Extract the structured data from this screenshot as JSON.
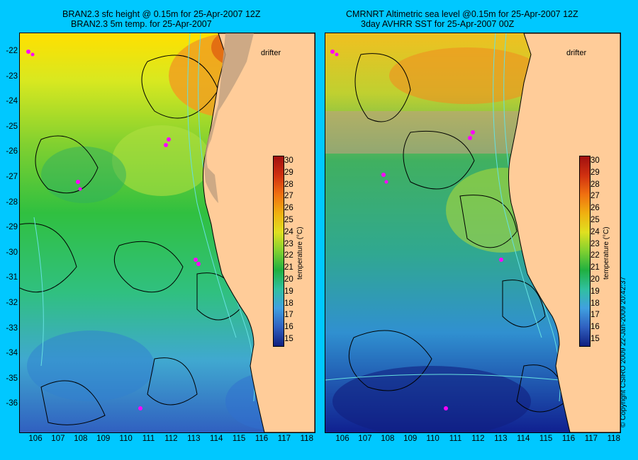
{
  "left": {
    "title_line1": "BRAN2.3 sfc height @ 0.15m for 25-Apr-2007 12Z",
    "title_line2": "BRAN2.3 5m temp. for 25-Apr-2007"
  },
  "right": {
    "title_line1": "CMRNRT Altimetric sea level  @0.15m  for 25-Apr-2007 12Z",
    "title_line2": "3day AVHRR SST for 25-Apr-2007 00Z"
  },
  "legend": {
    "drifter": "drifter",
    "cbar_title": "temperature (°C)"
  },
  "copyright": "© Copyright CSIRO 2009  22-Jan-2009 20:42:37",
  "lat_ticks": [
    "-22",
    "-23",
    "-24",
    "-25",
    "-26",
    "-27",
    "-28",
    "-29",
    "-30",
    "-31",
    "-32",
    "-33",
    "-34",
    "-35",
    "-36"
  ],
  "lon_ticks": [
    "106",
    "107",
    "108",
    "109",
    "110",
    "111",
    "112",
    "113",
    "114",
    "115",
    "116",
    "117",
    "118"
  ],
  "cbar_ticks": [
    "30",
    "29",
    "28",
    "27",
    "26",
    "25",
    "24",
    "23",
    "22",
    "21",
    "20",
    "19",
    "18",
    "17",
    "16",
    "15"
  ],
  "colors": {
    "background": "#00c8ff",
    "land": "#ffcc99",
    "drifter": "#ff00ff",
    "contour": "#000000",
    "isobath": "#66e0e0"
  }
}
